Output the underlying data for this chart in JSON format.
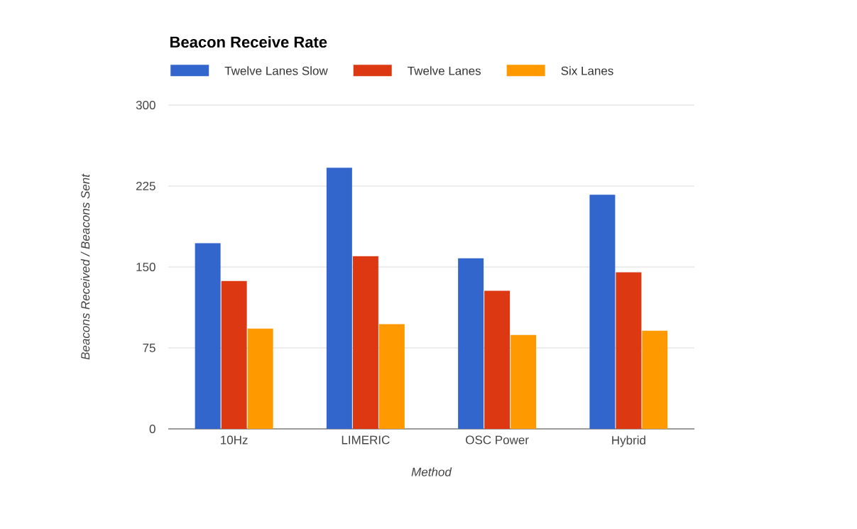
{
  "chart_data": {
    "type": "bar",
    "title": "Beacon Receive Rate",
    "xlabel": "Method",
    "ylabel": "Beacons Received / Beacons Sent",
    "categories": [
      "10Hz",
      "LIMERIC",
      "OSC Power",
      "Hybrid"
    ],
    "series": [
      {
        "name": "Twelve Lanes Slow",
        "color": "#3366cc",
        "values": [
          172,
          242,
          158,
          217
        ]
      },
      {
        "name": "Twelve Lanes",
        "color": "#dc3912",
        "values": [
          137,
          160,
          128,
          145
        ]
      },
      {
        "name": "Six Lanes",
        "color": "#ff9900",
        "values": [
          93,
          97,
          87,
          91
        ]
      }
    ],
    "ylim": [
      0,
      300
    ],
    "yticks": [
      0,
      75,
      150,
      225,
      300
    ],
    "grid": "y",
    "legend": "top"
  }
}
